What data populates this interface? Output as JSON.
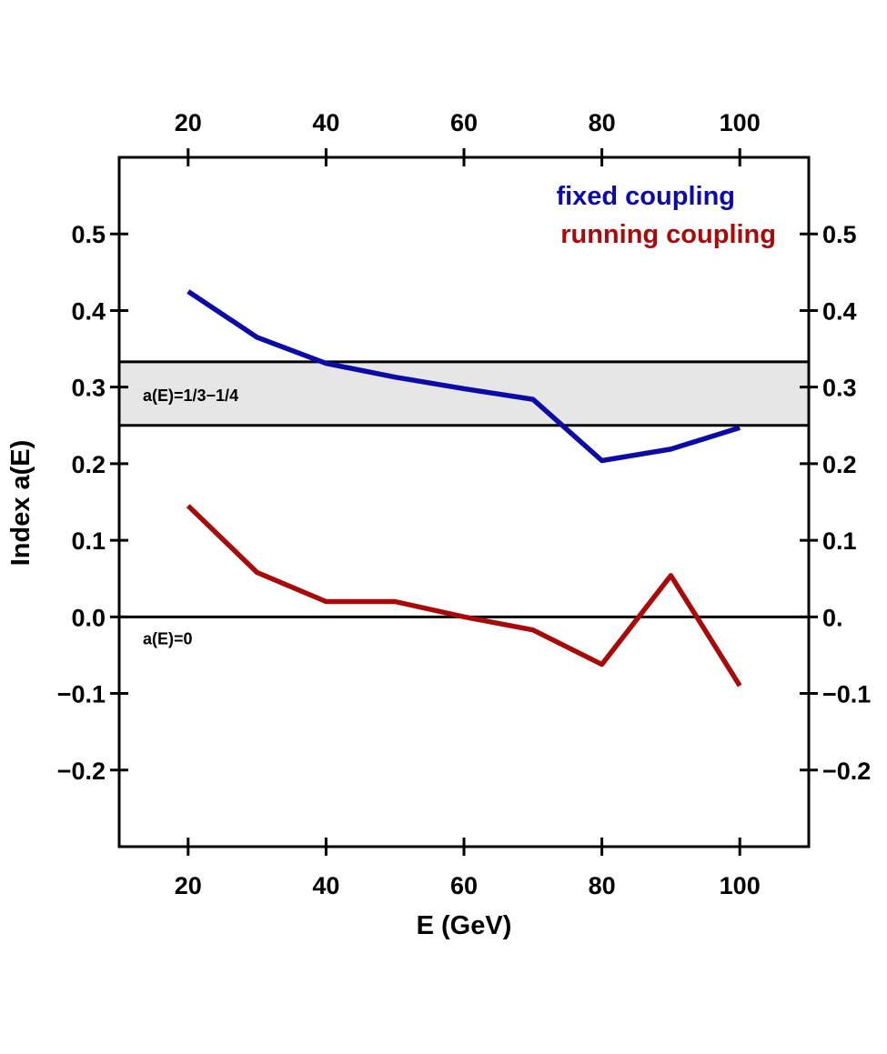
{
  "chart_data": {
    "type": "line",
    "xlabel": "E (GeV)",
    "ylabel": "Index a(E)",
    "xlim": [
      10,
      110
    ],
    "ylim": [
      -0.3,
      0.6
    ],
    "x_ticks": [
      20,
      40,
      60,
      80,
      100
    ],
    "x_tick_labels": [
      "20",
      "40",
      "60",
      "80",
      "100"
    ],
    "y_ticks": [
      0.5,
      0.4,
      0.3,
      0.2,
      0.1,
      0.0,
      -0.1,
      -0.2
    ],
    "y_tick_labels_left": [
      "0.5",
      "0.4",
      "0.3",
      "0.2",
      "0.1",
      "0.0",
      "−0.1",
      "−0.2"
    ],
    "y_tick_labels_right": [
      "0.5",
      "0.4",
      "0.3",
      "0.2",
      "0.1",
      "0.",
      "−0.1",
      "−0.2"
    ],
    "grid": false,
    "legend_position": "top-right",
    "series": [
      {
        "name": "fixed coupling",
        "color": "#0d0ba6",
        "x": [
          20,
          30,
          40,
          50,
          60,
          70,
          80,
          90,
          100
        ],
        "y": [
          0.425,
          0.365,
          0.331,
          0.313,
          0.298,
          0.284,
          0.204,
          0.219,
          0.247
        ]
      },
      {
        "name": "running coupling",
        "color": "#a80a0a",
        "x": [
          20,
          30,
          40,
          50,
          60,
          70,
          80,
          90,
          100
        ],
        "y": [
          0.145,
          0.058,
          0.02,
          0.02,
          0.0,
          -0.017,
          -0.062,
          0.054,
          -0.09
        ]
      }
    ],
    "band": {
      "y_min": 0.25,
      "y_max": 0.333,
      "fill": "#e6e6e6",
      "label": "a(E)=1/3−1/4"
    },
    "reference_line": {
      "y": 0.0,
      "label": "a(E)=0"
    }
  }
}
